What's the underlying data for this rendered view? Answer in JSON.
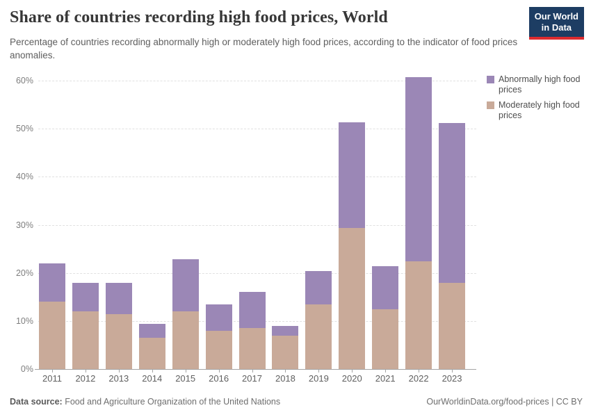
{
  "header": {
    "title": "Share of countries recording high food prices, World",
    "subtitle": "Percentage of countries recording abnormally high or moderately high food prices, according to the indicator of food prices anomalies.",
    "logo": {
      "line1": "Our World",
      "line2": "in Data"
    }
  },
  "colors": {
    "abnormal": "#9b87b6",
    "moderate": "#c9aa99",
    "logo_navy": "#1d3d63",
    "logo_red": "#dc2b2f"
  },
  "legend": [
    {
      "label": "Abnormally high food prices",
      "color": "#9b87b6"
    },
    {
      "label": "Moderately high food prices",
      "color": "#c9aa99"
    }
  ],
  "chart_data": {
    "type": "bar",
    "stacked": true,
    "title": "Share of countries recording high food prices, World",
    "categories": [
      "2011",
      "2012",
      "2013",
      "2014",
      "2015",
      "2016",
      "2017",
      "2018",
      "2019",
      "2020",
      "2021",
      "2022",
      "2023"
    ],
    "series": [
      {
        "name": "Abnormally high food prices",
        "color": "#9b87b6",
        "values": [
          8.0,
          6.0,
          6.6,
          2.9,
          10.9,
          5.5,
          7.5,
          2.0,
          7.0,
          21.9,
          9.0,
          38.3,
          33.2
        ]
      },
      {
        "name": "Moderately high food prices",
        "color": "#c9aa99",
        "values": [
          14.0,
          12.0,
          11.4,
          6.5,
          12.0,
          8.0,
          8.5,
          7.0,
          13.4,
          29.4,
          12.4,
          22.4,
          18.0
        ]
      }
    ],
    "stack_totals": [
      22.0,
      18.0,
      18.0,
      9.4,
      22.9,
      13.5,
      16.0,
      9.0,
      20.4,
      51.3,
      21.4,
      60.7,
      51.2
    ],
    "xlabel": "",
    "ylabel": "",
    "ylim": [
      0,
      60
    ],
    "yticks": [
      "0%",
      "10%",
      "20%",
      "30%",
      "40%",
      "50%",
      "60%"
    ],
    "grid": "horizontal dashed",
    "legend_position": "top-right"
  },
  "footer": {
    "source_label": "Data source:",
    "source_text": "Food and Agriculture Organization of the United Nations",
    "link_text": "OurWorldinData.org/food-prices | CC BY"
  }
}
